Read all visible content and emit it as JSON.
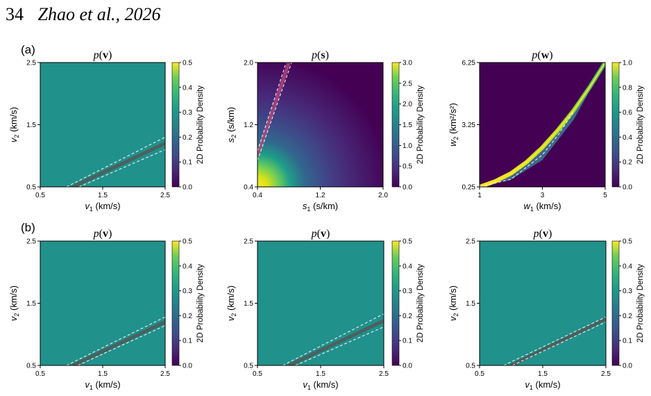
{
  "header": {
    "page_number": "34",
    "citation": "Zhao et al., 2026"
  },
  "row_labels": [
    "(a)",
    "(b)"
  ],
  "colorbar_label": "2D Probability Density",
  "colors": {
    "background_fill": "#21918c",
    "low": "#440154",
    "high": "#fde725",
    "guide_line": "#ffffff",
    "ridge": "#555555"
  },
  "chart_data": [
    {
      "type": "heatmap",
      "row": "a",
      "title": "p(v)",
      "title_bold": "v",
      "xlabel": "v1 (km/s)",
      "xlabel_sub": "1",
      "ylabel": "v2 (km/s)",
      "ylabel_sub": "2",
      "x_ticks": [
        "0.5",
        "1.5",
        "2.5"
      ],
      "y_ticks": [
        "0.5",
        "1.5",
        "2.5"
      ],
      "xlim": [
        0.5,
        2.5
      ],
      "ylim": [
        0.5,
        2.5
      ],
      "colorbar_ticks": [
        "0.0",
        "0.1",
        "0.2",
        "0.3",
        "0.4",
        "0.5"
      ],
      "colorbar_range": [
        0,
        0.5
      ],
      "ridge": {
        "center": [
          [
            1.02,
            0.5
          ],
          [
            2.5,
            1.2
          ]
        ],
        "upper": [
          [
            0.92,
            0.5
          ],
          [
            2.5,
            1.3
          ]
        ],
        "lower": [
          [
            1.12,
            0.5
          ],
          [
            2.5,
            1.1
          ]
        ]
      }
    },
    {
      "type": "heatmap",
      "row": "a",
      "title": "p(s)",
      "title_bold": "s",
      "xlabel": "s1 (s/km)",
      "xlabel_sub": "1",
      "ylabel": "s2 (s/km)",
      "ylabel_sub": "2",
      "x_ticks": [
        "0.4",
        "1.2",
        "2.0"
      ],
      "y_ticks": [
        "0.4",
        "1.2",
        "2.0"
      ],
      "xlim": [
        0.4,
        2.0
      ],
      "ylim": [
        0.4,
        2.0
      ],
      "colorbar_ticks": [
        "0.0",
        "0.5",
        "1.0",
        "1.5",
        "2.0",
        "2.5",
        "3.0"
      ],
      "colorbar_range": [
        0,
        3.0
      ],
      "ridge": {
        "center": [
          [
            0.4,
            0.8
          ],
          [
            0.8,
            2.0
          ]
        ],
        "upper": [
          [
            0.4,
            0.86
          ],
          [
            0.765,
            2.0
          ]
        ],
        "lower": [
          [
            0.4,
            0.74
          ],
          [
            0.835,
            2.0
          ]
        ]
      }
    },
    {
      "type": "heatmap",
      "row": "a",
      "title": "p(w)",
      "title_bold": "w",
      "xlabel": "w1 (km/s)",
      "xlabel_sub": "1",
      "ylabel": "w2 (km²/s²)",
      "ylabel_sub": "2",
      "x_ticks": [
        "1",
        "3",
        "5"
      ],
      "y_ticks": [
        "0.25",
        "3.25",
        "6.25"
      ],
      "xlim": [
        1,
        5
      ],
      "ylim": [
        0.25,
        6.25
      ],
      "colorbar_ticks": [
        "0.0",
        "0.2",
        "0.4",
        "0.6",
        "0.8",
        "1.0"
      ],
      "colorbar_range": [
        0,
        1.0
      ],
      "band": {
        "center": [
          [
            1.0,
            0.25
          ],
          [
            1.5,
            0.52
          ],
          [
            2.0,
            0.9
          ],
          [
            2.5,
            1.45
          ],
          [
            3.0,
            2.15
          ],
          [
            3.5,
            3.0
          ],
          [
            4.0,
            3.95
          ],
          [
            4.5,
            5.05
          ],
          [
            5.0,
            6.25
          ]
        ],
        "lower": [
          [
            1.0,
            0.25
          ],
          [
            2.0,
            0.6
          ],
          [
            3.0,
            1.55
          ],
          [
            4.0,
            3.5
          ],
          [
            5.0,
            6.25
          ]
        ],
        "dashed": [
          [
            1.0,
            0.25
          ],
          [
            2.0,
            0.62
          ],
          [
            3.0,
            1.8
          ],
          [
            3.5,
            2.75
          ],
          [
            4.0,
            3.9
          ]
        ]
      }
    },
    {
      "type": "heatmap",
      "row": "b",
      "title": "p(v)",
      "title_bold": "v",
      "xlabel": "v1 (km/s)",
      "xlabel_sub": "1",
      "ylabel": "v2 (km/s)",
      "ylabel_sub": "2",
      "x_ticks": [
        "0.5",
        "1.5",
        "2.5"
      ],
      "y_ticks": [
        "0.5",
        "1.5",
        "2.5"
      ],
      "xlim": [
        0.5,
        2.5
      ],
      "ylim": [
        0.5,
        2.5
      ],
      "colorbar_ticks": [
        "0.0",
        "0.1",
        "0.2",
        "0.3",
        "0.4",
        "0.5"
      ],
      "colorbar_range": [
        0,
        0.5
      ],
      "ridge": {
        "center": [
          [
            1.02,
            0.5
          ],
          [
            2.5,
            1.2
          ]
        ],
        "upper": [
          [
            0.92,
            0.5
          ],
          [
            2.5,
            1.28
          ]
        ],
        "lower": [
          [
            1.1,
            0.5
          ],
          [
            2.5,
            1.14
          ]
        ]
      }
    },
    {
      "type": "heatmap",
      "row": "b",
      "title": "p(v)",
      "title_bold": "v",
      "xlabel": "v1 (km/s)",
      "xlabel_sub": "1",
      "ylabel": "v2 (km/s)",
      "ylabel_sub": "2",
      "x_ticks": [
        "0.5",
        "1.5",
        "2.5"
      ],
      "y_ticks": [
        "0.5",
        "1.5",
        "2.5"
      ],
      "xlim": [
        0.5,
        2.5
      ],
      "ylim": [
        0.5,
        2.5
      ],
      "colorbar_ticks": [
        "0.0",
        "0.1",
        "0.2",
        "0.3",
        "0.4",
        "0.5"
      ],
      "colorbar_range": [
        0,
        0.5
      ],
      "ridge": {
        "center": [
          [
            1.0,
            0.5
          ],
          [
            2.5,
            1.22
          ]
        ],
        "upper": [
          [
            0.9,
            0.5
          ],
          [
            2.5,
            1.33
          ]
        ],
        "lower": [
          [
            1.1,
            0.5
          ],
          [
            2.5,
            1.12
          ]
        ]
      }
    },
    {
      "type": "heatmap",
      "row": "b",
      "title": "p(v)",
      "title_bold": "v",
      "xlabel": "v1 (km/s)",
      "xlabel_sub": "1",
      "ylabel": "v2 (km/s)",
      "ylabel_sub": "2",
      "x_ticks": [
        "0.5",
        "1.5",
        "2.5"
      ],
      "y_ticks": [
        "0.5",
        "1.5",
        "2.5"
      ],
      "xlim": [
        0.5,
        2.5
      ],
      "ylim": [
        0.5,
        2.5
      ],
      "colorbar_ticks": [
        "0.0",
        "0.1",
        "0.2",
        "0.3",
        "0.4",
        "0.5"
      ],
      "colorbar_range": [
        0,
        0.5
      ],
      "ridge": {
        "center": [
          [
            1.0,
            0.5
          ],
          [
            2.5,
            1.25
          ]
        ],
        "upper": [
          [
            0.88,
            0.5
          ],
          [
            2.5,
            1.28
          ]
        ],
        "lower": [
          [
            1.02,
            0.5
          ],
          [
            2.5,
            1.2
          ]
        ]
      }
    }
  ]
}
